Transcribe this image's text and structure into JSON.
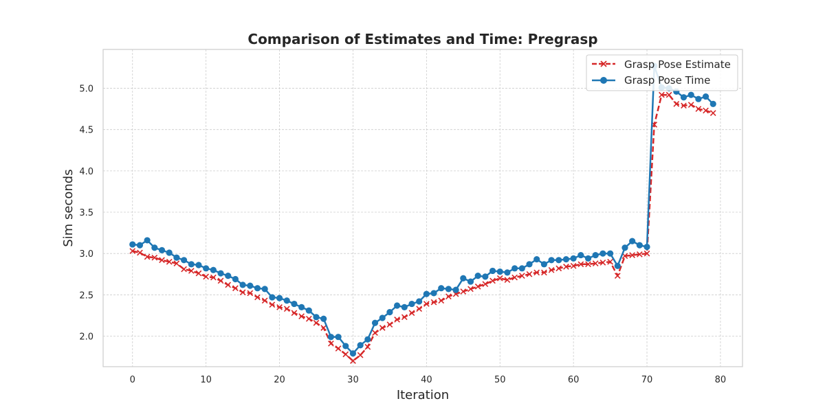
{
  "chart_data": {
    "type": "line",
    "title": "Comparison of Estimates and Time: Pregrasp",
    "xlabel": "Iteration",
    "ylabel": "Sim seconds",
    "xlim": [
      -4,
      83
    ],
    "ylim": [
      1.63,
      5.47
    ],
    "xticks": [
      0,
      10,
      20,
      30,
      40,
      50,
      60,
      70,
      80
    ],
    "yticks": [
      2.0,
      2.5,
      3.0,
      3.5,
      4.0,
      4.5,
      5.0
    ],
    "ytick_labels": [
      "2.0",
      "2.5",
      "3.0",
      "3.5",
      "4.0",
      "4.5",
      "5.0"
    ],
    "grid": true,
    "legend_position": "top-right",
    "x": [
      0,
      1,
      2,
      3,
      4,
      5,
      6,
      7,
      8,
      9,
      10,
      11,
      12,
      13,
      14,
      15,
      16,
      17,
      18,
      19,
      20,
      21,
      22,
      23,
      24,
      25,
      26,
      27,
      28,
      29,
      30,
      31,
      32,
      33,
      34,
      35,
      36,
      37,
      38,
      39,
      40,
      41,
      42,
      43,
      44,
      45,
      46,
      47,
      48,
      49,
      50,
      51,
      52,
      53,
      54,
      55,
      56,
      57,
      58,
      59,
      60,
      61,
      62,
      63,
      64,
      65,
      66,
      67,
      68,
      69,
      70,
      71,
      72,
      73,
      74,
      75,
      76,
      77,
      78,
      79
    ],
    "series": [
      {
        "name": "Grasp Pose Estimate",
        "color": "#d62728",
        "style": "dashed",
        "marker": "x",
        "values": [
          3.03,
          3.01,
          2.96,
          2.95,
          2.92,
          2.9,
          2.88,
          2.81,
          2.79,
          2.76,
          2.72,
          2.71,
          2.67,
          2.62,
          2.58,
          2.53,
          2.52,
          2.47,
          2.43,
          2.38,
          2.35,
          2.33,
          2.28,
          2.24,
          2.21,
          2.16,
          2.1,
          1.91,
          1.85,
          1.78,
          1.7,
          1.77,
          1.87,
          2.04,
          2.1,
          2.14,
          2.2,
          2.23,
          2.28,
          2.33,
          2.39,
          2.41,
          2.43,
          2.48,
          2.51,
          2.54,
          2.57,
          2.6,
          2.63,
          2.67,
          2.7,
          2.68,
          2.71,
          2.73,
          2.75,
          2.77,
          2.77,
          2.8,
          2.82,
          2.84,
          2.85,
          2.87,
          2.87,
          2.88,
          2.89,
          2.9,
          2.73,
          2.97,
          2.98,
          2.99,
          3.0,
          4.56,
          4.92,
          4.92,
          4.81,
          4.79,
          4.8,
          4.75,
          4.73,
          4.7
        ]
      },
      {
        "name": "Grasp Pose Time",
        "color": "#1f77b4",
        "style": "solid",
        "marker": "o",
        "values": [
          3.11,
          3.1,
          3.16,
          3.07,
          3.04,
          3.01,
          2.95,
          2.92,
          2.87,
          2.86,
          2.82,
          2.8,
          2.76,
          2.73,
          2.69,
          2.62,
          2.61,
          2.58,
          2.57,
          2.47,
          2.46,
          2.43,
          2.39,
          2.35,
          2.31,
          2.23,
          2.21,
          1.99,
          1.99,
          1.88,
          1.79,
          1.89,
          1.96,
          2.16,
          2.22,
          2.29,
          2.37,
          2.35,
          2.39,
          2.42,
          2.51,
          2.52,
          2.58,
          2.57,
          2.56,
          2.7,
          2.66,
          2.73,
          2.72,
          2.79,
          2.78,
          2.77,
          2.82,
          2.82,
          2.87,
          2.93,
          2.87,
          2.92,
          2.92,
          2.93,
          2.94,
          2.98,
          2.94,
          2.98,
          3.0,
          3.0,
          2.85,
          3.07,
          3.15,
          3.1,
          3.08,
          5.27,
          5.01,
          5.0,
          4.96,
          4.89,
          4.92,
          4.87,
          4.9,
          4.81
        ]
      }
    ]
  }
}
